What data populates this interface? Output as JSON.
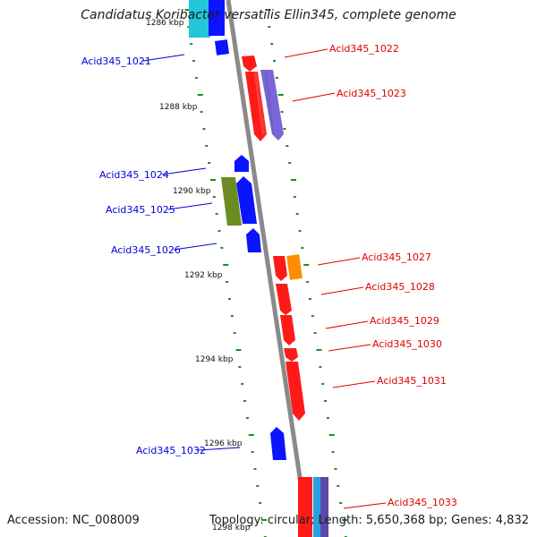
{
  "title": "Candidatus Koribacter versatilis Ellin345, complete genome",
  "footer": {
    "accession": "Accession: NC_008009",
    "topology": "Topology: circular; Length: 5,650,368 bp; Genes: 4,832"
  },
  "colors": {
    "backbone": "#8a8a8a",
    "label_plus": "#e00000",
    "label_minus": "#0000d8",
    "tick_dots": "#1f8f1f",
    "red": "#ff1a1a",
    "blue": "#0a14ff",
    "lavender": "#7a66d8",
    "olive": "#6b8c22",
    "orange": "#ff8c00",
    "cyan": "#22c6d8",
    "skyblue": "#2a9fe0",
    "slate": "#5a4aa8"
  },
  "ticks": [
    {
      "label": "1286 kbp"
    },
    {
      "label": "1288 kbp"
    },
    {
      "label": "1290 kbp"
    },
    {
      "label": "1292 kbp"
    },
    {
      "label": "1294 kbp"
    },
    {
      "label": "1296 kbp"
    },
    {
      "label": "1298 kbp"
    }
  ],
  "genes_minus": [
    {
      "label": "Acid345_1021"
    },
    {
      "label": "Acid345_1024"
    },
    {
      "label": "Acid345_1025"
    },
    {
      "label": "Acid345_1026"
    },
    {
      "label": "Acid345_1032"
    }
  ],
  "genes_plus": [
    {
      "label": "Acid345_1022"
    },
    {
      "label": "Acid345_1023"
    },
    {
      "label": "Acid345_1027"
    },
    {
      "label": "Acid345_1028"
    },
    {
      "label": "Acid345_1029"
    },
    {
      "label": "Acid345_1030"
    },
    {
      "label": "Acid345_1031"
    },
    {
      "label": "Acid345_1033"
    }
  ]
}
